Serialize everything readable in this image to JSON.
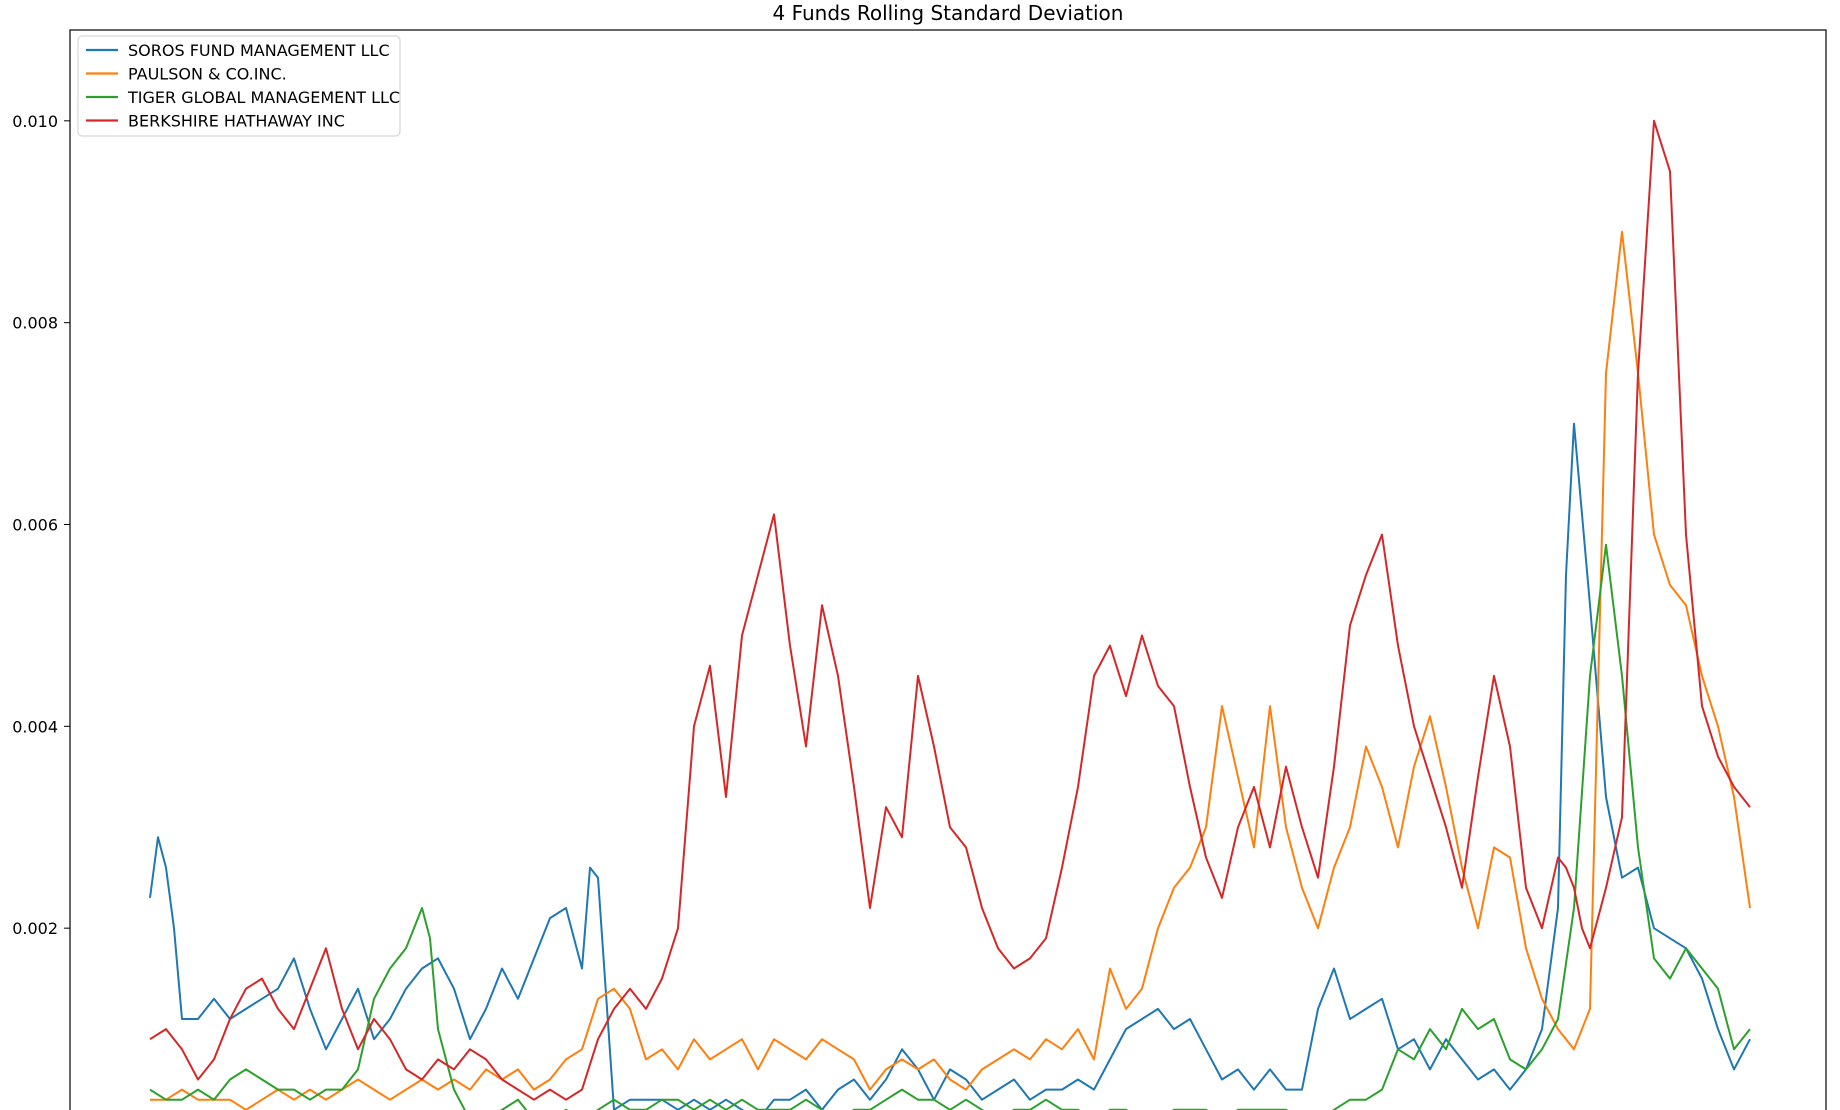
{
  "chart_data": {
    "type": "line",
    "title": "4 Funds Rolling Standard Deviation",
    "xlabel": "",
    "ylabel": "",
    "ylim": [
      0.0,
      0.0109
    ],
    "y_ticks": [
      0.002,
      0.004,
      0.006,
      0.008,
      0.01
    ],
    "y_tick_labels": [
      "0.002",
      "0.004",
      "0.006",
      "0.008",
      "0.010"
    ],
    "x_range": [
      0,
      100
    ],
    "grid": false,
    "legend_position": "upper-left",
    "series": [
      {
        "name": "SOROS FUND MANAGEMENT LLC",
        "color": "#1f77b4",
        "x": [
          0,
          0.5,
          1,
          1.5,
          2,
          3,
          4,
          5,
          6,
          7,
          8,
          9,
          10,
          11,
          12,
          13,
          14,
          15,
          16,
          17,
          18,
          19,
          20,
          21,
          22,
          23,
          24,
          25,
          26,
          27,
          27.5,
          28,
          29,
          30,
          31,
          32,
          33,
          34,
          35,
          36,
          37,
          38,
          39,
          40,
          41,
          42,
          43,
          44,
          45,
          46,
          47,
          48,
          49,
          50,
          51,
          52,
          53,
          54,
          55,
          56,
          57,
          58,
          59,
          60,
          61,
          62,
          63,
          64,
          65,
          66,
          67,
          68,
          69,
          70,
          71,
          72,
          73,
          74,
          75,
          76,
          77,
          78,
          79,
          80,
          81,
          82,
          83,
          84,
          85,
          86,
          87,
          88,
          88.5,
          89,
          90,
          91,
          92,
          93,
          94,
          95,
          96,
          97,
          98,
          99,
          100
        ],
        "values": [
          0.0023,
          0.0029,
          0.0026,
          0.002,
          0.0011,
          0.0011,
          0.0013,
          0.0011,
          0.0012,
          0.0013,
          0.0014,
          0.0017,
          0.0012,
          0.0008,
          0.0011,
          0.0014,
          0.0009,
          0.0011,
          0.0014,
          0.0016,
          0.0017,
          0.0014,
          0.0009,
          0.0012,
          0.0016,
          0.0013,
          0.0017,
          0.0021,
          0.0022,
          0.0016,
          0.0026,
          0.0025,
          0.0002,
          0.0003,
          0.0003,
          0.0003,
          0.0002,
          0.0003,
          0.0002,
          0.0003,
          0.0002,
          0.0001,
          0.0003,
          0.0003,
          0.0004,
          0.0002,
          0.0004,
          0.0005,
          0.0003,
          0.0005,
          0.0008,
          0.0006,
          0.0003,
          0.0006,
          0.0005,
          0.0003,
          0.0004,
          0.0005,
          0.0003,
          0.0004,
          0.0004,
          0.0005,
          0.0004,
          0.0007,
          0.001,
          0.0011,
          0.0012,
          0.001,
          0.0011,
          0.0008,
          0.0005,
          0.0006,
          0.0004,
          0.0006,
          0.0004,
          0.0004,
          0.0012,
          0.0016,
          0.0011,
          0.0012,
          0.0013,
          0.0008,
          0.0009,
          0.0006,
          0.0009,
          0.0007,
          0.0005,
          0.0006,
          0.0004,
          0.0006,
          0.001,
          0.0022,
          0.0055,
          0.007,
          0.0052,
          0.0033,
          0.0025,
          0.0026,
          0.002,
          0.0019,
          0.0018,
          0.0015,
          0.001,
          0.0006,
          0.0009
        ]
      },
      {
        "name": "PAULSON & CO.INC.",
        "color": "#ff7f0e",
        "x": [
          0,
          1,
          2,
          3,
          4,
          5,
          6,
          7,
          8,
          9,
          10,
          11,
          12,
          13,
          14,
          15,
          16,
          17,
          18,
          19,
          20,
          21,
          22,
          23,
          24,
          25,
          26,
          27,
          28,
          29,
          30,
          31,
          32,
          33,
          34,
          35,
          36,
          37,
          38,
          39,
          40,
          41,
          42,
          43,
          44,
          45,
          46,
          47,
          48,
          49,
          50,
          51,
          52,
          53,
          54,
          55,
          56,
          57,
          58,
          59,
          60,
          61,
          62,
          63,
          64,
          65,
          66,
          67,
          68,
          69,
          70,
          71,
          72,
          73,
          74,
          75,
          76,
          77,
          78,
          79,
          80,
          81,
          82,
          83,
          84,
          85,
          86,
          87,
          88,
          89,
          90,
          91,
          92,
          93,
          94,
          95,
          96,
          97,
          98,
          99,
          100
        ],
        "values": [
          0.0003,
          0.0003,
          0.0004,
          0.0003,
          0.0003,
          0.0003,
          0.0002,
          0.0003,
          0.0004,
          0.0003,
          0.0004,
          0.0003,
          0.0004,
          0.0005,
          0.0004,
          0.0003,
          0.0004,
          0.0005,
          0.0004,
          0.0005,
          0.0004,
          0.0006,
          0.0005,
          0.0006,
          0.0004,
          0.0005,
          0.0007,
          0.0008,
          0.0013,
          0.0014,
          0.0012,
          0.0007,
          0.0008,
          0.0006,
          0.0009,
          0.0007,
          0.0008,
          0.0009,
          0.0006,
          0.0009,
          0.0008,
          0.0007,
          0.0009,
          0.0008,
          0.0007,
          0.0004,
          0.0006,
          0.0007,
          0.0006,
          0.0007,
          0.0005,
          0.0004,
          0.0006,
          0.0007,
          0.0008,
          0.0007,
          0.0009,
          0.0008,
          0.001,
          0.0007,
          0.0016,
          0.0012,
          0.0014,
          0.002,
          0.0024,
          0.0026,
          0.003,
          0.0042,
          0.0035,
          0.0028,
          0.0042,
          0.003,
          0.0024,
          0.002,
          0.0026,
          0.003,
          0.0038,
          0.0034,
          0.0028,
          0.0036,
          0.0041,
          0.0034,
          0.0026,
          0.002,
          0.0028,
          0.0027,
          0.0018,
          0.0013,
          0.001,
          0.0008,
          0.0012,
          0.0075,
          0.0089,
          0.0075,
          0.0059,
          0.0054,
          0.0052,
          0.0045,
          0.004,
          0.0033,
          0.0022
        ]
      },
      {
        "name": "TIGER GLOBAL MANAGEMENT LLC",
        "color": "#2ca02c",
        "x": [
          0,
          1,
          2,
          3,
          4,
          5,
          6,
          7,
          8,
          9,
          10,
          11,
          12,
          13,
          14,
          15,
          16,
          16.5,
          17,
          17.5,
          18,
          19,
          20,
          21,
          22,
          23,
          24,
          25,
          26,
          27,
          28,
          29,
          30,
          31,
          32,
          33,
          34,
          35,
          36,
          37,
          38,
          39,
          40,
          41,
          42,
          43,
          44,
          45,
          46,
          47,
          48,
          49,
          50,
          51,
          52,
          53,
          54,
          55,
          56,
          57,
          58,
          59,
          60,
          61,
          62,
          63,
          64,
          65,
          66,
          67,
          68,
          69,
          70,
          71,
          72,
          73,
          74,
          75,
          76,
          77,
          78,
          79,
          80,
          81,
          82,
          83,
          84,
          85,
          86,
          87,
          88,
          89,
          90,
          91,
          92,
          93,
          94,
          95,
          96,
          97,
          98,
          99,
          100
        ],
        "values": [
          0.0004,
          0.0003,
          0.0003,
          0.0004,
          0.0003,
          0.0005,
          0.0006,
          0.0005,
          0.0004,
          0.0004,
          0.0003,
          0.0004,
          0.0004,
          0.0006,
          0.0013,
          0.0016,
          0.0018,
          0.002,
          0.0022,
          0.0019,
          0.001,
          0.0004,
          0.0001,
          0.0001,
          0.0002,
          0.0003,
          0.0001,
          0.0001,
          0.0002,
          0.0001,
          0.0002,
          0.0003,
          0.0002,
          0.0002,
          0.0003,
          0.0003,
          0.0002,
          0.0003,
          0.0002,
          0.0003,
          0.0002,
          0.0002,
          0.0002,
          0.0003,
          0.0002,
          0.0001,
          0.0002,
          0.0002,
          0.0003,
          0.0004,
          0.0003,
          0.0003,
          0.0002,
          0.0003,
          0.0002,
          0.0001,
          0.0002,
          0.0002,
          0.0003,
          0.0002,
          0.0002,
          0.0001,
          0.0002,
          0.0002,
          0.0001,
          0.0001,
          0.0002,
          0.0002,
          0.0002,
          0.0001,
          0.0002,
          0.0002,
          0.0002,
          0.0002,
          0.0001,
          0.0001,
          0.0002,
          0.0003,
          0.0003,
          0.0004,
          0.0008,
          0.0007,
          0.001,
          0.0008,
          0.0012,
          0.001,
          0.0011,
          0.0007,
          0.0006,
          0.0008,
          0.0011,
          0.0022,
          0.0045,
          0.0058,
          0.0045,
          0.0028,
          0.0017,
          0.0015,
          0.0018,
          0.0016,
          0.0014,
          0.0008,
          0.001
        ]
      },
      {
        "name": "BERKSHIRE HATHAWAY INC",
        "color": "#d62728",
        "x": [
          0,
          1,
          2,
          3,
          4,
          5,
          6,
          7,
          8,
          9,
          10,
          11,
          12,
          13,
          14,
          15,
          16,
          17,
          18,
          19,
          20,
          21,
          22,
          23,
          24,
          25,
          26,
          27,
          28,
          29,
          30,
          31,
          32,
          33,
          34,
          35,
          36,
          37,
          38,
          39,
          40,
          41,
          42,
          43,
          44,
          45,
          46,
          47,
          48,
          49,
          50,
          51,
          52,
          53,
          54,
          55,
          56,
          57,
          58,
          59,
          60,
          61,
          62,
          63,
          64,
          65,
          66,
          67,
          68,
          69,
          70,
          71,
          72,
          73,
          74,
          75,
          76,
          77,
          78,
          79,
          80,
          81,
          82,
          83,
          84,
          85,
          86,
          87,
          88,
          88.5,
          89,
          89.5,
          90,
          91,
          92,
          93,
          94,
          95,
          96,
          97,
          98,
          99,
          100
        ],
        "values": [
          0.0009,
          0.001,
          0.0008,
          0.0005,
          0.0007,
          0.0011,
          0.0014,
          0.0015,
          0.0012,
          0.001,
          0.0014,
          0.0018,
          0.0012,
          0.0008,
          0.0011,
          0.0009,
          0.0006,
          0.0005,
          0.0007,
          0.0006,
          0.0008,
          0.0007,
          0.0005,
          0.0004,
          0.0003,
          0.0004,
          0.0003,
          0.0004,
          0.0009,
          0.0012,
          0.0014,
          0.0012,
          0.0015,
          0.002,
          0.004,
          0.0046,
          0.0033,
          0.0049,
          0.0055,
          0.0061,
          0.0048,
          0.0038,
          0.0052,
          0.0045,
          0.0034,
          0.0022,
          0.0032,
          0.0029,
          0.0045,
          0.0038,
          0.003,
          0.0028,
          0.0022,
          0.0018,
          0.0016,
          0.0017,
          0.0019,
          0.0026,
          0.0034,
          0.0045,
          0.0048,
          0.0043,
          0.0049,
          0.0044,
          0.0042,
          0.0034,
          0.0027,
          0.0023,
          0.003,
          0.0034,
          0.0028,
          0.0036,
          0.003,
          0.0025,
          0.0036,
          0.005,
          0.0055,
          0.0059,
          0.0048,
          0.004,
          0.0035,
          0.003,
          0.0024,
          0.0035,
          0.0045,
          0.0038,
          0.0024,
          0.002,
          0.0027,
          0.0026,
          0.0024,
          0.002,
          0.0018,
          0.0024,
          0.0031,
          0.0075,
          0.01,
          0.0095,
          0.0059,
          0.0042,
          0.0037,
          0.0034,
          0.0032
        ]
      }
    ]
  }
}
